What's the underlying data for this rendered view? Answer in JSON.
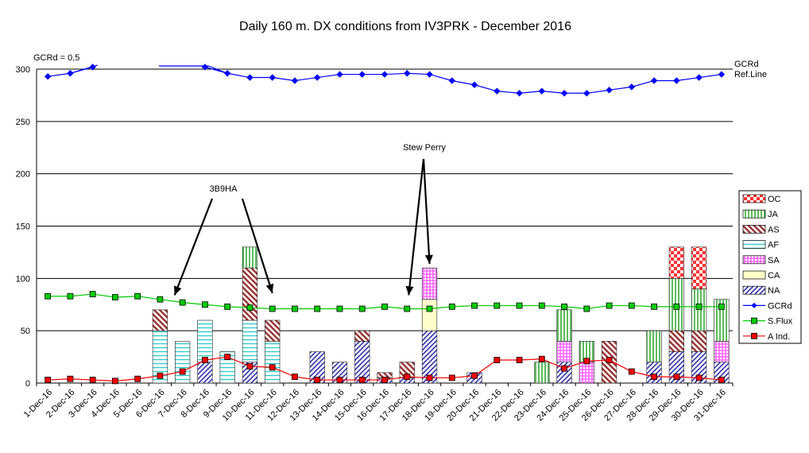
{
  "chart_data": {
    "type": "bar",
    "title": "Daily 160 m. DX conditions from IV3PRK  -  December 2016",
    "ylim": [
      0,
      300
    ],
    "yticks": [
      "0",
      "50",
      "100",
      "150",
      "200",
      "250",
      "300"
    ],
    "grid": true,
    "legend_position": "right",
    "categories": [
      "1-Dec-16",
      "2-Dec-16",
      "3-Dec-16",
      "4-Dec-16",
      "5-Dec-16",
      "6-Dec-16",
      "7-Dec-16",
      "8-Dec-16",
      "9-Dec-16",
      "10-Dec-16",
      "11-Dec-16",
      "12-Dec-16",
      "13-Dec-16",
      "14-Dec-16",
      "15-Dec-16",
      "16-Dec-16",
      "17-Dec-16",
      "18-Dec-16",
      "19-Dec-16",
      "20-Dec-16",
      "21-Dec-16",
      "22-Dec-16",
      "23-Dec-16",
      "24-Dec-16",
      "25-Dec-16",
      "26-Dec-16",
      "27-Dec-16",
      "28-Dec-16",
      "29-Dec-16",
      "30-Dec-16",
      "31-Dec-16"
    ],
    "stack_series": [
      {
        "name": "NA",
        "color": "#3333aa",
        "pattern": "diag",
        "values": [
          0,
          0,
          0,
          0,
          0,
          0,
          0,
          20,
          0,
          20,
          0,
          0,
          30,
          20,
          40,
          5,
          5,
          50,
          0,
          10,
          0,
          0,
          0,
          20,
          0,
          0,
          0,
          20,
          30,
          30,
          20
        ]
      },
      {
        "name": "CA",
        "color": "#ffffcc",
        "pattern": "solid",
        "values": [
          0,
          0,
          0,
          0,
          0,
          0,
          0,
          0,
          0,
          0,
          0,
          0,
          0,
          0,
          0,
          0,
          0,
          30,
          0,
          0,
          0,
          0,
          0,
          0,
          0,
          0,
          0,
          0,
          0,
          0,
          0
        ]
      },
      {
        "name": "SA",
        "color": "#ff66ff",
        "pattern": "grid",
        "values": [
          0,
          0,
          0,
          0,
          0,
          0,
          0,
          0,
          0,
          0,
          0,
          0,
          0,
          0,
          0,
          0,
          0,
          30,
          0,
          0,
          0,
          0,
          0,
          20,
          20,
          0,
          0,
          0,
          0,
          0,
          20
        ]
      },
      {
        "name": "AF",
        "color": "#33cccc",
        "pattern": "horiz",
        "values": [
          0,
          0,
          0,
          0,
          0,
          50,
          40,
          40,
          30,
          40,
          40,
          0,
          0,
          0,
          0,
          0,
          0,
          0,
          0,
          0,
          0,
          0,
          0,
          0,
          0,
          0,
          0,
          0,
          0,
          0,
          0
        ]
      },
      {
        "name": "AS",
        "color": "#993333",
        "pattern": "diag",
        "values": [
          0,
          0,
          0,
          0,
          0,
          20,
          0,
          0,
          0,
          50,
          20,
          0,
          0,
          0,
          10,
          5,
          15,
          0,
          0,
          0,
          0,
          0,
          0,
          0,
          0,
          40,
          0,
          0,
          20,
          20,
          0
        ]
      },
      {
        "name": "JA",
        "color": "#33aa33",
        "pattern": "vert",
        "values": [
          0,
          0,
          0,
          0,
          0,
          0,
          0,
          0,
          0,
          20,
          0,
          0,
          0,
          0,
          0,
          0,
          0,
          0,
          0,
          0,
          0,
          0,
          20,
          30,
          20,
          0,
          0,
          30,
          50,
          40,
          40
        ]
      },
      {
        "name": "OC",
        "color": "#ff3333",
        "pattern": "check",
        "values": [
          0,
          0,
          0,
          0,
          0,
          0,
          0,
          0,
          0,
          0,
          0,
          0,
          0,
          0,
          0,
          0,
          0,
          0,
          0,
          0,
          0,
          0,
          0,
          0,
          0,
          0,
          0,
          0,
          30,
          40,
          0
        ]
      }
    ],
    "line_series": [
      {
        "name": "GCRd",
        "color": "#0000ff",
        "marker": "diamond",
        "values": [
          293,
          296,
          302,
          null,
          null,
          null,
          null,
          302,
          296,
          292,
          292,
          289,
          292,
          295,
          295,
          295,
          296,
          295,
          289,
          285,
          279,
          277,
          279,
          277,
          277,
          280,
          283,
          289,
          289,
          292,
          295
        ]
      },
      {
        "name": "S.Flux",
        "color": "#00cc00",
        "marker": "square",
        "values": [
          83,
          83,
          85,
          82,
          83,
          80,
          77,
          75,
          73,
          72,
          71,
          71,
          71,
          71,
          71,
          73,
          71,
          71,
          73,
          74,
          74,
          74,
          74,
          73,
          71,
          74,
          74,
          73,
          73,
          73,
          73
        ]
      },
      {
        "name": "A Ind.",
        "color": "#ff0000",
        "marker": "square",
        "values": [
          3,
          4,
          3,
          2,
          4,
          7,
          11,
          22,
          25,
          16,
          15,
          6,
          3,
          3,
          3,
          3,
          6,
          5,
          5,
          7,
          22,
          22,
          23,
          14,
          21,
          22,
          11,
          6,
          6,
          5,
          3
        ]
      }
    ],
    "legend_order": [
      "OC",
      "JA",
      "AS",
      "AF",
      "SA",
      "CA",
      "NA",
      "GCRd",
      "S.Flux",
      "A Ind."
    ],
    "annotations": [
      {
        "text": "GCRd = 0,5",
        "position": "top-left"
      },
      {
        "text": "GCRd\nRef.Line",
        "position": "right-top"
      },
      {
        "text": "3B9HA",
        "targets": [
          "7-Dec-16",
          "11-Dec-16"
        ]
      },
      {
        "text": "Stew Perry",
        "targets": [
          "17-Dec-16",
          "18-Dec-16"
        ]
      }
    ]
  }
}
